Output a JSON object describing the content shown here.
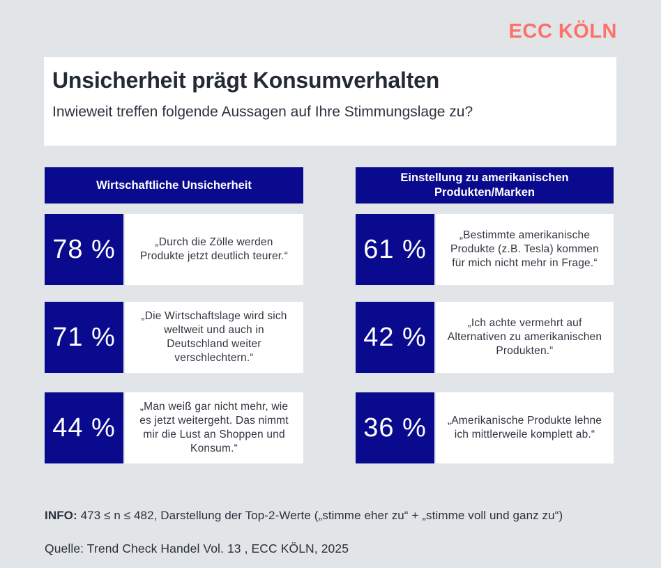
{
  "logo": {
    "text": "ECC KÖLN",
    "color": "#fa7268"
  },
  "title_block": {
    "title": "Unsicherheit prägt Konsumverhalten",
    "subtitle": "Inwieweit treffen folgende Aussagen auf Ihre Stimmungslage zu?"
  },
  "colors": {
    "navy": "#0a0a8e",
    "background": "#e2e5e8",
    "card": "#ffffff",
    "accent_coral": "#fa7268",
    "text_dark": "#242936"
  },
  "columns": [
    {
      "header": "Wirtschaftliche Unsicherheit",
      "items": [
        {
          "percent": "78 %",
          "quote": "„Durch die Zölle werden Produkte jetzt deutlich teurer.“"
        },
        {
          "percent": "71 %",
          "quote": "„Die Wirtschaftslage wird sich weltweit und auch in Deutschland weiter verschlechtern.“"
        },
        {
          "percent": "44 %",
          "quote": "„Man weiß gar nicht mehr, wie es jetzt weitergeht. Das nimmt mir die Lust an Shoppen und Konsum.“"
        }
      ]
    },
    {
      "header": "Einstellung zu amerikanischen Produkten/Marken",
      "items": [
        {
          "percent": "61 %",
          "quote": "„Bestimmte amerikanische Produkte (z.B. Tesla) kommen für mich nicht mehr in Frage.“"
        },
        {
          "percent": "42 %",
          "quote": "„Ich achte vermehrt auf Alternativen zu amerikanischen Produkten.“"
        },
        {
          "percent": "36 %",
          "quote": "„Amerikanische Produkte lehne ich mittlerweile komplett ab.“"
        }
      ]
    }
  ],
  "footer": {
    "info_label": "INFO:",
    "info_rest": " 473 ≤ n ≤ 482, Darstellung der Top-2-Werte („stimme eher zu“ + „stimme voll und ganz zu“)",
    "source": "Quelle: Trend Check Handel Vol. 13 , ECC KÖLN, 2025"
  },
  "chart_data": {
    "type": "bar",
    "title": "Unsicherheit prägt Konsumverhalten",
    "subtitle": "Inwieweit treffen folgende Aussagen auf Ihre Stimmungslage zu?",
    "unit": "%",
    "ylim": [
      0,
      100
    ],
    "groups": [
      {
        "category": "Wirtschaftliche Unsicherheit",
        "labels": [
          "„Durch die Zölle werden Produkte jetzt deutlich teurer.“",
          "„Die Wirtschaftslage wird sich weltweit und auch in Deutschland weiter verschlechtern.“",
          "„Man weiß gar nicht mehr, wie es jetzt weitergeht. Das nimmt mir die Lust an Shoppen und Konsum.“"
        ],
        "values": [
          78,
          71,
          44
        ]
      },
      {
        "category": "Einstellung zu amerikanischen Produkten/Marken",
        "labels": [
          "„Bestimmte amerikanische Produkte (z.B. Tesla) kommen für mich nicht mehr in Frage.“",
          "„Ich achte vermehrt auf Alternativen zu amerikanischen Produkten.“",
          "„Amerikanische Produkte lehne ich mittlerweile komplett ab.“"
        ],
        "values": [
          61,
          42,
          36
        ]
      }
    ],
    "footnote": "INFO: 473 ≤ n ≤ 482, Darstellung der Top-2-Werte („stimme eher zu“ + „stimme voll und ganz zu“)",
    "source": "Quelle: Trend Check Handel Vol. 13 , ECC KÖLN, 2025"
  }
}
